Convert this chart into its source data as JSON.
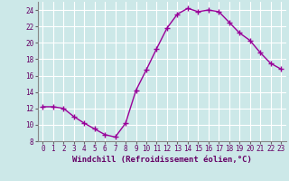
{
  "x": [
    0,
    1,
    2,
    3,
    4,
    5,
    6,
    7,
    8,
    9,
    10,
    11,
    12,
    13,
    14,
    15,
    16,
    17,
    18,
    19,
    20,
    21,
    22,
    23
  ],
  "y": [
    12.2,
    12.2,
    12.0,
    11.0,
    10.2,
    9.5,
    8.8,
    8.5,
    10.2,
    14.2,
    16.7,
    19.3,
    21.8,
    23.5,
    24.2,
    23.8,
    24.0,
    23.8,
    22.5,
    21.2,
    20.3,
    18.8,
    17.5,
    16.8
  ],
  "line_color": "#990099",
  "marker": "+",
  "markersize": 4,
  "linewidth": 1.0,
  "bg_color": "#cce8e8",
  "xlabel": "Windchill (Refroidissement éolien,°C)",
  "xlim": [
    -0.5,
    23.5
  ],
  "ylim": [
    8,
    25
  ],
  "yticks": [
    8,
    10,
    12,
    14,
    16,
    18,
    20,
    22,
    24
  ],
  "xticks": [
    0,
    1,
    2,
    3,
    4,
    5,
    6,
    7,
    8,
    9,
    10,
    11,
    12,
    13,
    14,
    15,
    16,
    17,
    18,
    19,
    20,
    21,
    22,
    23
  ],
  "grid_color": "#ffffff",
  "tick_labelsize": 5.5,
  "xlabel_fontsize": 6.5,
  "markeredgewidth": 1.0
}
